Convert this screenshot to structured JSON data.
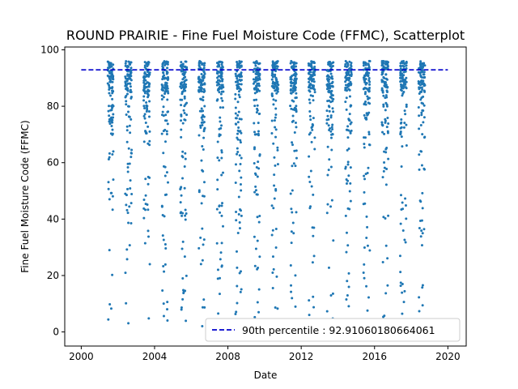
{
  "chart_data": {
    "type": "scatter",
    "title": "ROUND PRAIRIE - Fine Fuel Moisture Code (FFMC), Scatterplot",
    "xlabel": "Date",
    "ylabel": "Fine Fuel Moisture Code (FFMC)",
    "xlim": [
      1999.1,
      2021.0
    ],
    "ylim": [
      -5,
      101
    ],
    "x_ticks": [
      "2000",
      "2004",
      "2008",
      "2012",
      "2016",
      "2020"
    ],
    "y_ticks": [
      "0",
      "20",
      "40",
      "60",
      "80",
      "100"
    ],
    "grid": false,
    "legend_position": "lower right",
    "point_color": "#1f77b4",
    "reference_line": {
      "label": "90th percentile : 92.91060180664061",
      "value": 92.91060180664061,
      "color": "#0000cc",
      "style": "dashed"
    },
    "seasons": [
      {
        "year": 2001,
        "start": 2001.45,
        "end": 2001.75
      },
      {
        "year": 2002,
        "start": 2002.4,
        "end": 2002.75
      },
      {
        "year": 2003,
        "start": 2003.4,
        "end": 2003.75
      },
      {
        "year": 2004,
        "start": 2004.4,
        "end": 2004.75
      },
      {
        "year": 2005,
        "start": 2005.4,
        "end": 2005.75
      },
      {
        "year": 2006,
        "start": 2006.4,
        "end": 2006.75
      },
      {
        "year": 2007,
        "start": 2007.4,
        "end": 2007.75
      },
      {
        "year": 2008,
        "start": 2008.4,
        "end": 2008.75
      },
      {
        "year": 2009,
        "start": 2009.4,
        "end": 2009.75
      },
      {
        "year": 2010,
        "start": 2010.4,
        "end": 2010.75
      },
      {
        "year": 2011,
        "start": 2011.4,
        "end": 2011.75
      },
      {
        "year": 2012,
        "start": 2012.4,
        "end": 2012.75
      },
      {
        "year": 2013,
        "start": 2013.4,
        "end": 2013.75
      },
      {
        "year": 2014,
        "start": 2014.4,
        "end": 2014.75
      },
      {
        "year": 2015,
        "start": 2015.4,
        "end": 2015.75
      },
      {
        "year": 2016,
        "start": 2016.4,
        "end": 2016.75
      },
      {
        "year": 2017,
        "start": 2017.4,
        "end": 2017.75
      },
      {
        "year": 2018,
        "start": 2018.4,
        "end": 2018.75
      }
    ],
    "points_per_season": 110,
    "value_distribution": "most daily values between 80 and 96, sparse tail down to about 1"
  }
}
